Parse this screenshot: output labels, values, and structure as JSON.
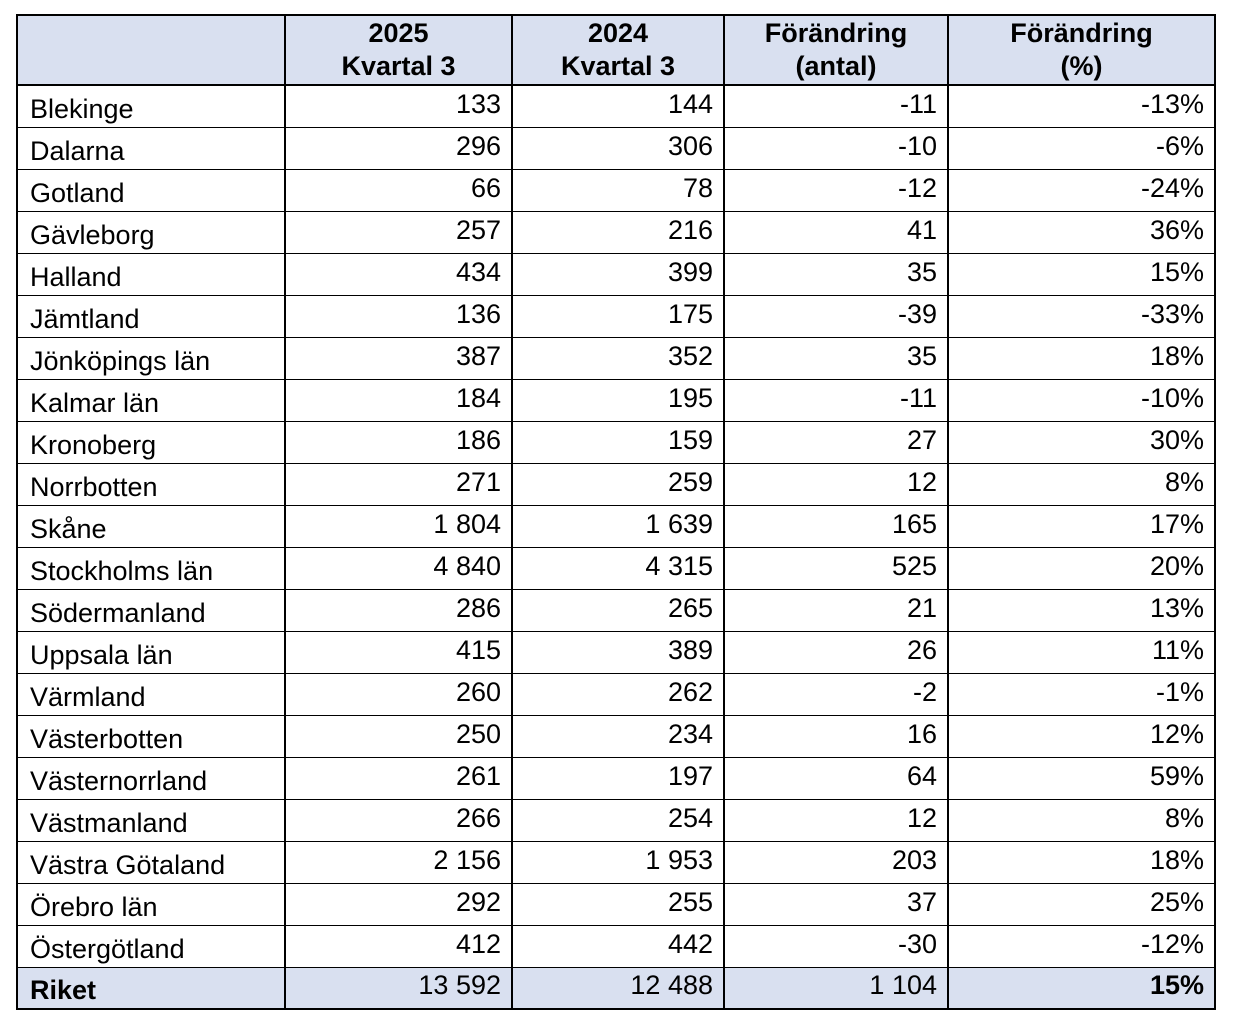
{
  "colors": {
    "header_fill": "#D9E0F0",
    "total_row_fill": "#D9E0F0",
    "border": "#000000",
    "text": "#000000",
    "row_fill": "#FFFFFF"
  },
  "table": {
    "columns": [
      {
        "line1": "",
        "line2": ""
      },
      {
        "line1": "2025",
        "line2": "Kvartal 3"
      },
      {
        "line1": "2024",
        "line2": "Kvartal 3"
      },
      {
        "line1": "Förändring",
        "line2": "(antal)"
      },
      {
        "line1": "Förändring",
        "line2": "(%)"
      }
    ],
    "rows": [
      {
        "region": "Blekinge",
        "q3_2025": "133",
        "q3_2024": "144",
        "change_count": "-11",
        "change_pct": "-13%"
      },
      {
        "region": "Dalarna",
        "q3_2025": "296",
        "q3_2024": "306",
        "change_count": "-10",
        "change_pct": "-6%"
      },
      {
        "region": "Gotland",
        "q3_2025": "66",
        "q3_2024": "78",
        "change_count": "-12",
        "change_pct": "-24%"
      },
      {
        "region": "Gävleborg",
        "q3_2025": "257",
        "q3_2024": "216",
        "change_count": "41",
        "change_pct": "36%"
      },
      {
        "region": "Halland",
        "q3_2025": "434",
        "q3_2024": "399",
        "change_count": "35",
        "change_pct": "15%"
      },
      {
        "region": "Jämtland",
        "q3_2025": "136",
        "q3_2024": "175",
        "change_count": "-39",
        "change_pct": "-33%"
      },
      {
        "region": "Jönköpings län",
        "q3_2025": "387",
        "q3_2024": "352",
        "change_count": "35",
        "change_pct": "18%"
      },
      {
        "region": "Kalmar län",
        "q3_2025": "184",
        "q3_2024": "195",
        "change_count": "-11",
        "change_pct": "-10%"
      },
      {
        "region": "Kronoberg",
        "q3_2025": "186",
        "q3_2024": "159",
        "change_count": "27",
        "change_pct": "30%"
      },
      {
        "region": "Norrbotten",
        "q3_2025": "271",
        "q3_2024": "259",
        "change_count": "12",
        "change_pct": "8%"
      },
      {
        "region": "Skåne",
        "q3_2025": "1 804",
        "q3_2024": "1 639",
        "change_count": "165",
        "change_pct": "17%"
      },
      {
        "region": "Stockholms län",
        "q3_2025": "4 840",
        "q3_2024": "4 315",
        "change_count": "525",
        "change_pct": "20%"
      },
      {
        "region": "Södermanland",
        "q3_2025": "286",
        "q3_2024": "265",
        "change_count": "21",
        "change_pct": "13%"
      },
      {
        "region": "Uppsala län",
        "q3_2025": "415",
        "q3_2024": "389",
        "change_count": "26",
        "change_pct": "11%"
      },
      {
        "region": "Värmland",
        "q3_2025": "260",
        "q3_2024": "262",
        "change_count": "-2",
        "change_pct": "-1%"
      },
      {
        "region": "Västerbotten",
        "q3_2025": "250",
        "q3_2024": "234",
        "change_count": "16",
        "change_pct": "12%"
      },
      {
        "region": "Västernorrland",
        "q3_2025": "261",
        "q3_2024": "197",
        "change_count": "64",
        "change_pct": "59%"
      },
      {
        "region": "Västmanland",
        "q3_2025": "266",
        "q3_2024": "254",
        "change_count": "12",
        "change_pct": "8%"
      },
      {
        "region": "Västra Götaland",
        "q3_2025": "2 156",
        "q3_2024": "1 953",
        "change_count": "203",
        "change_pct": "18%"
      },
      {
        "region": "Örebro län",
        "q3_2025": "292",
        "q3_2024": "255",
        "change_count": "37",
        "change_pct": "25%"
      },
      {
        "region": "Östergötland",
        "q3_2025": "412",
        "q3_2024": "442",
        "change_count": "-30",
        "change_pct": "-12%"
      }
    ],
    "total_row": {
      "region": "Riket",
      "q3_2025": "13 592",
      "q3_2024": "12 488",
      "change_count": "1 104",
      "change_pct": "15%"
    }
  },
  "chart_data": {
    "type": "table",
    "columns": [
      "",
      "2025 Kvartal 3",
      "2024 Kvartal 3",
      "Förändring (antal)",
      "Förändring (%)"
    ],
    "rows": [
      [
        "Blekinge",
        133,
        144,
        -11,
        "-13%"
      ],
      [
        "Dalarna",
        296,
        306,
        -10,
        "-6%"
      ],
      [
        "Gotland",
        66,
        78,
        -12,
        "-24%"
      ],
      [
        "Gävleborg",
        257,
        216,
        41,
        "36%"
      ],
      [
        "Halland",
        434,
        399,
        35,
        "15%"
      ],
      [
        "Jämtland",
        136,
        175,
        -39,
        "-33%"
      ],
      [
        "Jönköpings län",
        387,
        352,
        35,
        "18%"
      ],
      [
        "Kalmar län",
        184,
        195,
        -11,
        "-10%"
      ],
      [
        "Kronoberg",
        186,
        159,
        27,
        "30%"
      ],
      [
        "Norrbotten",
        271,
        259,
        12,
        "8%"
      ],
      [
        "Skåne",
        1804,
        1639,
        165,
        "17%"
      ],
      [
        "Stockholms län",
        4840,
        4315,
        525,
        "20%"
      ],
      [
        "Södermanland",
        286,
        265,
        21,
        "13%"
      ],
      [
        "Uppsala län",
        415,
        389,
        26,
        "11%"
      ],
      [
        "Värmland",
        260,
        262,
        -2,
        "-1%"
      ],
      [
        "Västerbotten",
        250,
        234,
        16,
        "12%"
      ],
      [
        "Västernorrland",
        261,
        197,
        64,
        "59%"
      ],
      [
        "Västmanland",
        266,
        254,
        12,
        "8%"
      ],
      [
        "Västra Götaland",
        2156,
        1953,
        203,
        "18%"
      ],
      [
        "Örebro län",
        292,
        255,
        37,
        "25%"
      ],
      [
        "Östergötland",
        412,
        442,
        -30,
        "-12%"
      ],
      [
        "Riket",
        13592,
        12488,
        1104,
        "15%"
      ]
    ]
  }
}
